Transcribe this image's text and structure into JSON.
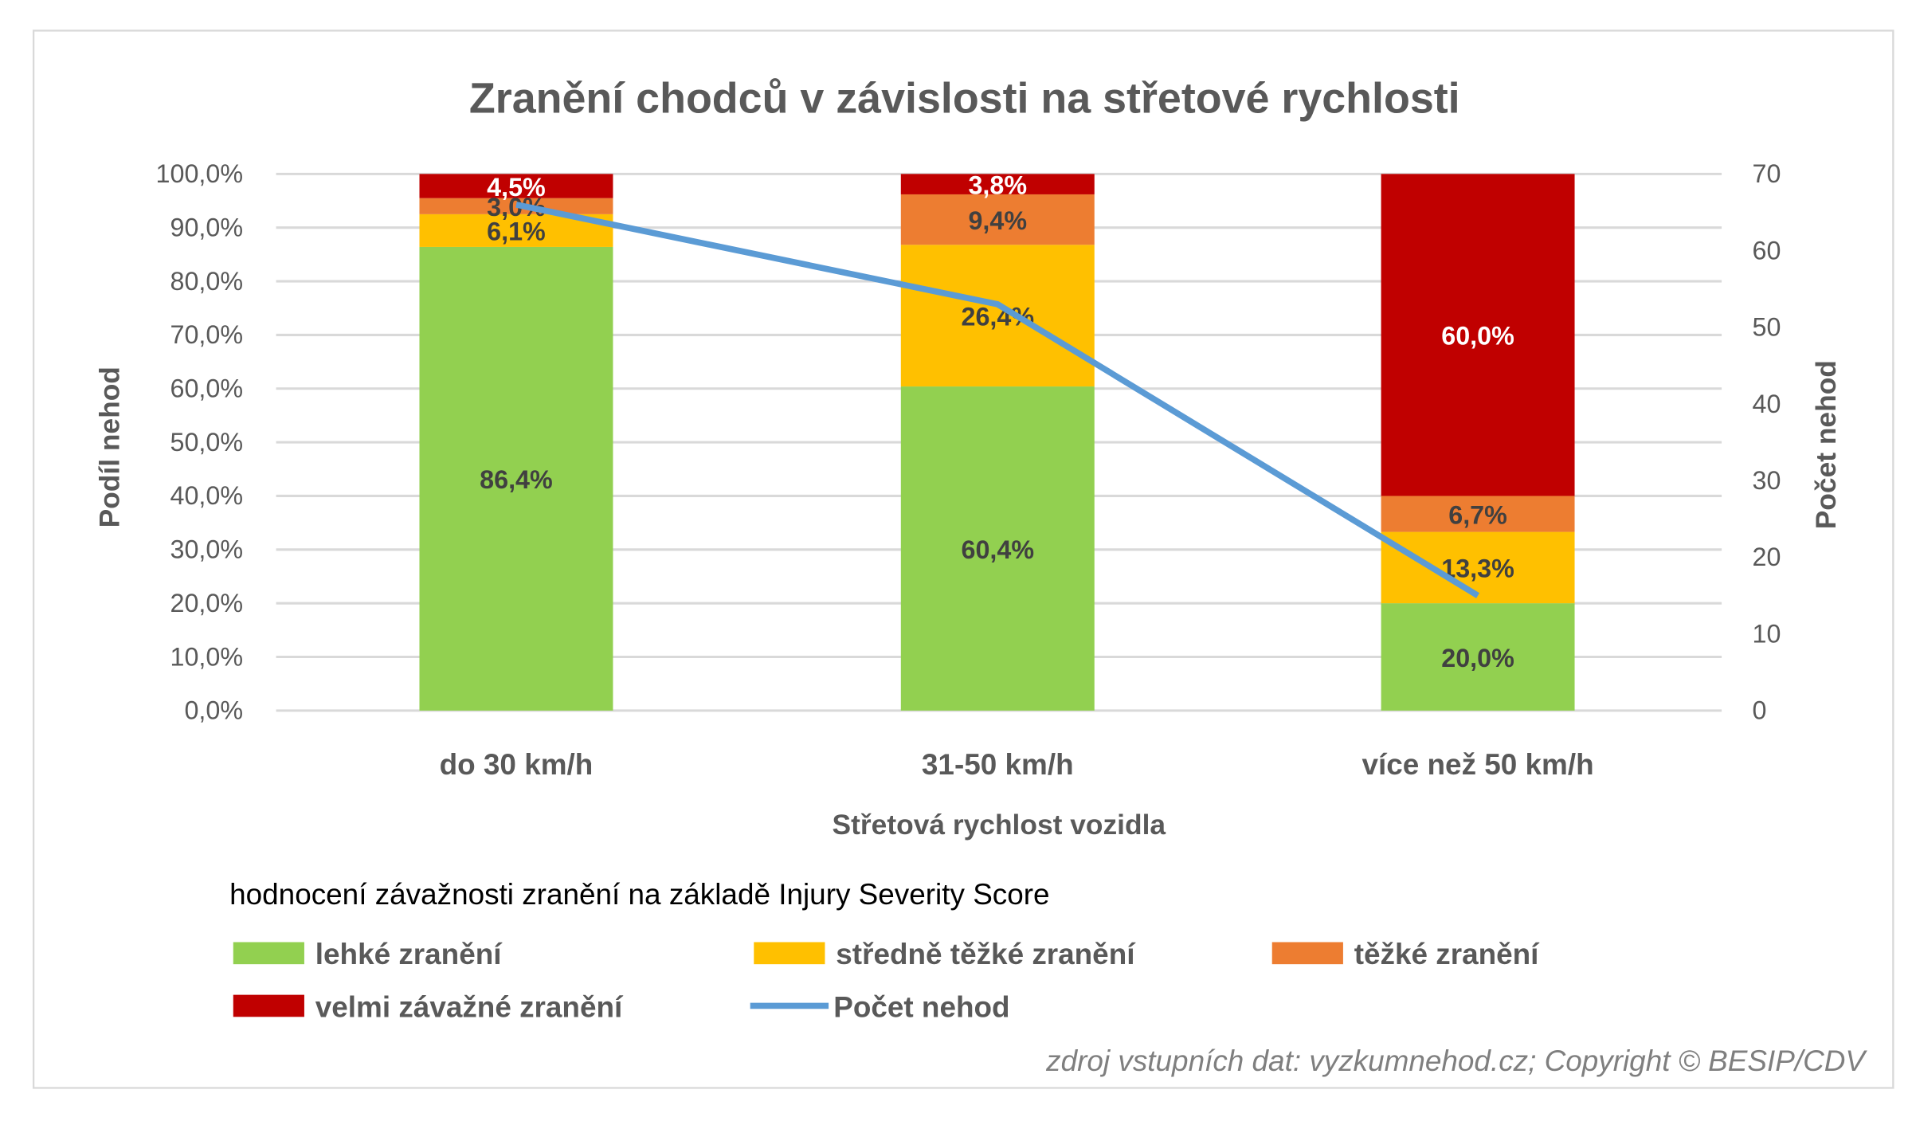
{
  "chart_data": {
    "type": "bar",
    "stacked": true,
    "title": "Zranění chodců v závislosti na střetové rychlosti",
    "xlabel": "Střetová rychlost vozidla",
    "ylabel": "Podíl nehod",
    "y2label": "Počet nehod",
    "ylim": [
      0,
      100
    ],
    "y2lim": [
      0,
      70
    ],
    "yticks": [
      "0,0%",
      "10,0%",
      "20,0%",
      "30,0%",
      "40,0%",
      "50,0%",
      "60,0%",
      "70,0%",
      "80,0%",
      "90,0%",
      "100,0%"
    ],
    "y2ticks": [
      "0",
      "10",
      "20",
      "30",
      "40",
      "50",
      "60",
      "70"
    ],
    "grid": true,
    "legend_title": "hodnocení závažnosti zranění na základě Injury Severity Score",
    "legend_position": "bottom",
    "categories": [
      "do 30 km/h",
      "31-50 km/h",
      "více než 50 km/h"
    ],
    "series": [
      {
        "name": "lehké zranění",
        "color": "#92D050",
        "values": [
          86.4,
          60.4,
          20.0
        ],
        "labels": [
          "86,4%",
          "60,4%",
          "20,0%"
        ],
        "label_color": "#404040"
      },
      {
        "name": "středně těžké zranění",
        "color": "#FFC000",
        "values": [
          6.1,
          26.4,
          13.3
        ],
        "labels": [
          "6,1%",
          "26,4%",
          "13,3%"
        ],
        "label_color": "#404040"
      },
      {
        "name": "těžké zranění",
        "color": "#ED7D31",
        "values": [
          3.0,
          9.4,
          6.7
        ],
        "labels": [
          "3,0%",
          "9,4%",
          "6,7%"
        ],
        "label_color": "#404040"
      },
      {
        "name": "velmi závažné zranění",
        "color": "#C00000",
        "values": [
          4.5,
          3.8,
          60.0
        ],
        "labels": [
          "4,5%",
          "3,8%",
          "60,0%"
        ],
        "label_color": "#FFFFFF"
      }
    ],
    "line_series": {
      "name": "Počet nehod",
      "color": "#5B9BD5",
      "axis": "right",
      "values": [
        66,
        53,
        15
      ]
    },
    "source": "zdroj vstupních dat: vyzkumnehod.cz;  Copyright © BESIP/CDV"
  }
}
